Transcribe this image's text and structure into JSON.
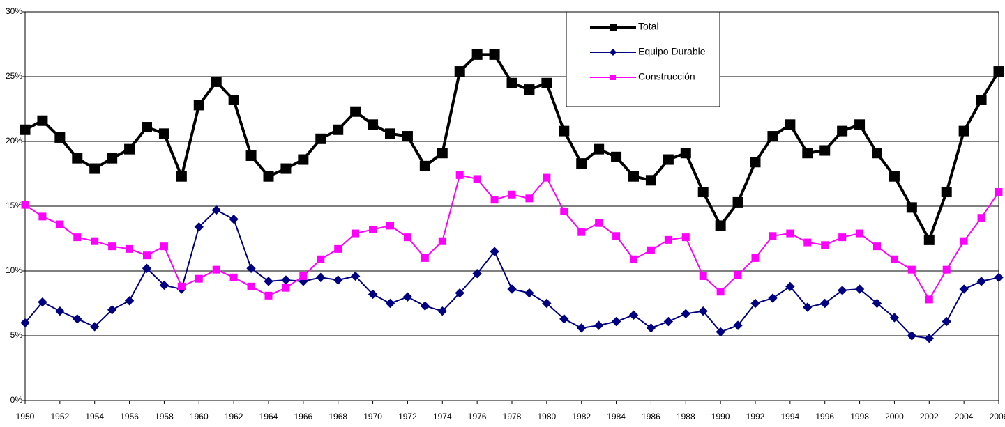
{
  "chart_data": {
    "type": "line",
    "x": [
      1950,
      1951,
      1952,
      1953,
      1954,
      1955,
      1956,
      1957,
      1958,
      1959,
      1960,
      1961,
      1962,
      1963,
      1964,
      1965,
      1966,
      1967,
      1968,
      1969,
      1970,
      1971,
      1972,
      1973,
      1974,
      1975,
      1976,
      1977,
      1978,
      1979,
      1980,
      1981,
      1982,
      1983,
      1984,
      1985,
      1986,
      1987,
      1988,
      1989,
      1990,
      1991,
      1992,
      1993,
      1994,
      1995,
      1996,
      1997,
      1998,
      1999,
      2000,
      2001,
      2002,
      2003,
      2004,
      2005,
      2006
    ],
    "xlim": [
      1950,
      2006
    ],
    "xticks": [
      1950,
      1952,
      1954,
      1956,
      1958,
      1960,
      1962,
      1964,
      1966,
      1968,
      1970,
      1972,
      1974,
      1976,
      1978,
      1980,
      1982,
      1984,
      1986,
      1988,
      1990,
      1992,
      1994,
      1996,
      1998,
      2000,
      2002,
      2004,
      2006
    ],
    "ylim": [
      0,
      30
    ],
    "yticks": [
      {
        "value": 0,
        "label": "0%"
      },
      {
        "value": 5,
        "label": "5%"
      },
      {
        "value": 10,
        "label": "10%"
      },
      {
        "value": 15,
        "label": "15%"
      },
      {
        "value": 20,
        "label": "20%"
      },
      {
        "value": 25,
        "label": "25%"
      },
      {
        "value": 30,
        "label": "30%"
      }
    ],
    "grid": true,
    "legend": "top",
    "series": [
      {
        "name": "Total",
        "color": "#000000",
        "marker": "square",
        "values": [
          20.9,
          21.6,
          20.3,
          18.7,
          17.9,
          18.7,
          19.4,
          21.1,
          20.6,
          17.3,
          22.8,
          24.6,
          23.2,
          18.9,
          17.3,
          17.9,
          18.6,
          20.2,
          20.9,
          22.3,
          21.3,
          20.6,
          20.4,
          18.1,
          19.1,
          25.4,
          26.7,
          26.7,
          24.5,
          24.0,
          24.5,
          20.8,
          18.3,
          19.4,
          18.8,
          17.3,
          17.0,
          18.6,
          19.1,
          16.1,
          13.5,
          15.3,
          18.4,
          20.4,
          21.3,
          19.1,
          19.3,
          20.8,
          21.3,
          19.1,
          17.3,
          14.9,
          12.4,
          16.1,
          20.8,
          23.2,
          25.4
        ]
      },
      {
        "name": "Equipo Durable",
        "color": "#000080",
        "marker": "diamond",
        "values": [
          6.0,
          7.6,
          6.9,
          6.3,
          5.7,
          7.0,
          7.7,
          10.2,
          8.9,
          8.6,
          13.4,
          14.7,
          14.0,
          10.2,
          9.2,
          9.3,
          9.2,
          9.5,
          9.3,
          9.6,
          8.2,
          7.5,
          8.0,
          7.3,
          6.9,
          8.3,
          9.8,
          11.5,
          8.6,
          8.3,
          7.5,
          6.3,
          5.6,
          5.8,
          6.1,
          6.6,
          5.6,
          6.1,
          6.7,
          6.9,
          5.3,
          5.8,
          7.5,
          7.9,
          8.8,
          7.2,
          7.5,
          8.5,
          8.6,
          7.5,
          6.4,
          5.0,
          4.8,
          6.1,
          8.6,
          9.2,
          9.5
        ]
      },
      {
        "name": "Construcción",
        "color": "#ff00ff",
        "marker": "square",
        "values": [
          15.1,
          14.2,
          13.6,
          12.6,
          12.3,
          11.9,
          11.7,
          11.2,
          11.9,
          8.8,
          9.4,
          10.1,
          9.5,
          8.8,
          8.1,
          8.7,
          9.6,
          10.9,
          11.7,
          12.9,
          13.2,
          13.5,
          12.6,
          11.0,
          12.3,
          17.4,
          17.1,
          15.5,
          15.9,
          15.6,
          17.2,
          14.6,
          13.0,
          13.7,
          12.7,
          10.9,
          11.6,
          12.4,
          12.6,
          9.6,
          8.4,
          9.7,
          11.0,
          12.7,
          12.9,
          12.2,
          12.0,
          12.6,
          12.9,
          11.9,
          10.9,
          10.1,
          7.8,
          10.1,
          12.3,
          14.1,
          16.1
        ]
      }
    ]
  }
}
